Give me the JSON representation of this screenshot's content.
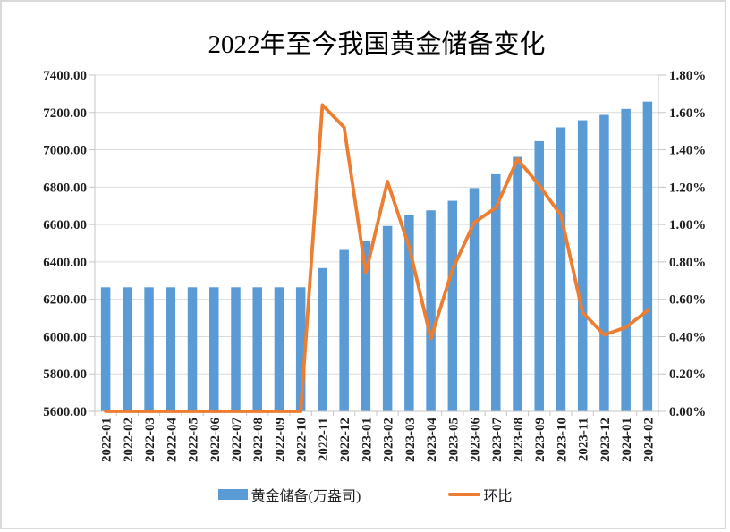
{
  "title": "2022年至今我国黄金储备变化",
  "legend": {
    "bar_label": "黄金储备(万盎司)",
    "line_label": "环比"
  },
  "colors": {
    "bar": "#5B9BD5",
    "line": "#ED7D31",
    "grid": "#DCDCDC",
    "axis": "#C6C6C6",
    "text": "#1F1F1F",
    "frame": "#D9D9D9"
  },
  "chart_data": {
    "type": "combo-bar-line",
    "title": "2022年至今我国黄金储备变化",
    "categories": [
      "2022-01",
      "2022-02",
      "2022-03",
      "2022-04",
      "2022-05",
      "2022-06",
      "2022-07",
      "2022-08",
      "2022-09",
      "2022-10",
      "2022-11",
      "2022-12",
      "2023-01",
      "2023-02",
      "2023-03",
      "2023-04",
      "2023-05",
      "2023-06",
      "2023-07",
      "2023-08",
      "2023-09",
      "2023-10",
      "2023-11",
      "2023-12",
      "2024-01",
      "2024-02"
    ],
    "series": [
      {
        "name": "黄金储备(万盎司)",
        "type": "bar",
        "axis": "left",
        "values": [
          6264,
          6264,
          6264,
          6264,
          6264,
          6264,
          6264,
          6264,
          6264,
          6264,
          6367,
          6464,
          6512,
          6592,
          6650,
          6676,
          6727,
          6795,
          6869,
          6962,
          7046,
          7120,
          7158,
          7187,
          7219,
          7258
        ]
      },
      {
        "name": "环比",
        "type": "line",
        "axis": "right",
        "values_percent": [
          0,
          0,
          0,
          0,
          0,
          0,
          0,
          0,
          0,
          0,
          1.64,
          1.52,
          0.74,
          1.23,
          0.88,
          0.39,
          0.76,
          1.01,
          1.09,
          1.35,
          1.21,
          1.05,
          0.53,
          0.41,
          0.45,
          0.54
        ]
      }
    ],
    "left_axis": {
      "min": 5600,
      "max": 7400,
      "step": 200,
      "tick_labels": [
        "5600.00",
        "5800.00",
        "6000.00",
        "6200.00",
        "6400.00",
        "6600.00",
        "6800.00",
        "7000.00",
        "7200.00",
        "7400.00"
      ]
    },
    "right_axis": {
      "min": 0,
      "max": 1.8,
      "step": 0.2,
      "tick_labels": [
        "0.00%",
        "0.20%",
        "0.40%",
        "0.60%",
        "0.80%",
        "1.00%",
        "1.20%",
        "1.40%",
        "1.60%",
        "1.80%"
      ]
    },
    "grid": "horizontal",
    "legend_position": "bottom"
  }
}
